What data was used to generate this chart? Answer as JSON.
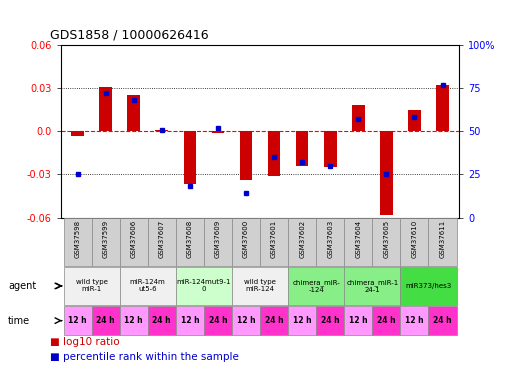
{
  "title": "GDS1858 / 10000626416",
  "samples": [
    "GSM37598",
    "GSM37599",
    "GSM37606",
    "GSM37607",
    "GSM37608",
    "GSM37609",
    "GSM37600",
    "GSM37601",
    "GSM37602",
    "GSM37603",
    "GSM37604",
    "GSM37605",
    "GSM37610",
    "GSM37611"
  ],
  "log10_ratio": [
    -0.003,
    0.031,
    0.025,
    0.001,
    -0.037,
    -0.001,
    -0.034,
    -0.031,
    -0.024,
    -0.025,
    0.018,
    -0.058,
    0.015,
    0.032
  ],
  "percentile_rank": [
    25,
    72,
    68,
    51,
    18,
    52,
    14,
    35,
    32,
    30,
    57,
    25,
    58,
    77
  ],
  "ylim": [
    -0.06,
    0.06
  ],
  "y2lim": [
    0,
    100
  ],
  "yticks": [
    -0.06,
    -0.03,
    0.0,
    0.03,
    0.06
  ],
  "y2ticks": [
    0,
    25,
    50,
    75,
    100
  ],
  "agent_groups": [
    {
      "label": "wild type\nmiR-1",
      "cols": [
        0,
        1
      ],
      "color": "#f0f0f0"
    },
    {
      "label": "miR-124m\nut5-6",
      "cols": [
        2,
        3
      ],
      "color": "#f0f0f0"
    },
    {
      "label": "miR-124mut9-1\n0",
      "cols": [
        4,
        5
      ],
      "color": "#ccffcc"
    },
    {
      "label": "wild type\nmiR-124",
      "cols": [
        6,
        7
      ],
      "color": "#f0f0f0"
    },
    {
      "label": "chimera_miR-\n-124",
      "cols": [
        8,
        9
      ],
      "color": "#88ee88"
    },
    {
      "label": "chimera_miR-1\n24-1",
      "cols": [
        10,
        11
      ],
      "color": "#88ee88"
    },
    {
      "label": "miR373/hes3",
      "cols": [
        12,
        13
      ],
      "color": "#44dd44"
    }
  ],
  "time_labels": [
    "12 h",
    "24 h",
    "12 h",
    "24 h",
    "12 h",
    "24 h",
    "12 h",
    "24 h",
    "12 h",
    "24 h",
    "12 h",
    "24 h",
    "12 h",
    "24 h"
  ],
  "time_12h_color": "#ff66ff",
  "time_24h_color": "#cc00cc",
  "time_last_color": "#cc00cc",
  "bar_color": "#cc0000",
  "dot_color": "#0000cc",
  "bg_color": "#ffffff",
  "zero_line_color": "#ff0000",
  "dot_line_color": "#000000",
  "gsm_bg_color": "#d0d0d0",
  "gsm_border_color": "#888888"
}
